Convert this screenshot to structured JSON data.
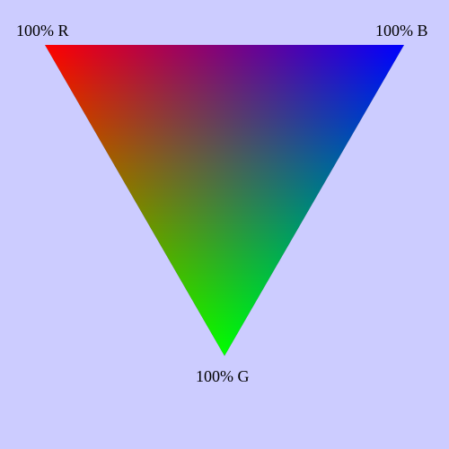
{
  "background_color": "#ccccff",
  "vertices": [
    {
      "key": "red",
      "label": "100% R",
      "color": "#ff0000"
    },
    {
      "key": "blue",
      "label": "100% B",
      "color": "#0000ff"
    },
    {
      "key": "green",
      "label": "100% G",
      "color": "#00ff00"
    }
  ]
}
